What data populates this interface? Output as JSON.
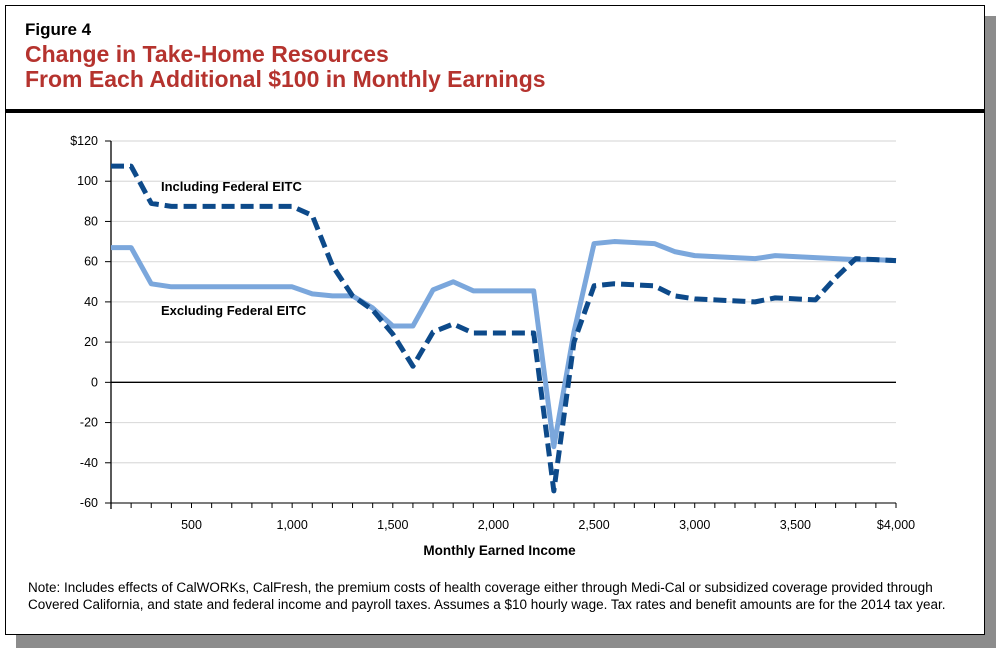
{
  "figure_label": "Figure 4",
  "title_line1": "Change in Take-Home Resources",
  "title_line2": "From Each Additional $100 in Monthly Earnings",
  "note": "Note: Includes effects of CalWORKs, CalFresh, the premium costs of health coverage either through Medi-Cal or subsidized coverage provided through Covered California, and state and federal income and payroll taxes. Assumes a $10 hourly wage. Tax rates and benefit amounts are for the 2014 tax year.",
  "chart_data": {
    "type": "line",
    "title": "Change in Take-Home Resources From Each Additional $100 in Monthly Earnings",
    "xlabel": "Monthly Earned Income",
    "ylabel": "",
    "xlim": [
      100,
      4000
    ],
    "ylim": [
      -60,
      120
    ],
    "yticks": [
      120,
      100,
      80,
      60,
      40,
      20,
      0,
      -20,
      -40,
      -60
    ],
    "ytick_labels": [
      "$120",
      "100",
      "80",
      "60",
      "40",
      "20",
      "0",
      "-20",
      "-40",
      "-60"
    ],
    "xticks": [
      500,
      1000,
      1500,
      2000,
      2500,
      3000,
      3500,
      4000
    ],
    "xtick_labels": [
      "500",
      "1,000",
      "1,500",
      "2,000",
      "2,500",
      "3,000",
      "3,500",
      "$4,000"
    ],
    "grid": true,
    "x": [
      100,
      200,
      300,
      400,
      500,
      600,
      700,
      800,
      900,
      1000,
      1100,
      1200,
      1300,
      1400,
      1500,
      1600,
      1700,
      1800,
      1900,
      2000,
      2100,
      2200,
      2300,
      2400,
      2500,
      2600,
      2700,
      2800,
      2900,
      3000,
      3100,
      3200,
      3300,
      3400,
      3500,
      3600,
      3700,
      3800,
      3900,
      4000
    ],
    "series": [
      {
        "name": "Including Federal EITC",
        "color": "#0d4a8a",
        "style": "dashed",
        "values": [
          107.5,
          107.5,
          89,
          87.5,
          87.5,
          87.5,
          87.5,
          87.5,
          87.5,
          87.5,
          83,
          58,
          43,
          36,
          24,
          8,
          25,
          29,
          24.5,
          24.5,
          24.5,
          24.5,
          -54,
          20,
          48,
          49,
          48.5,
          48,
          43,
          41.5,
          41,
          40.5,
          40,
          42,
          41.5,
          41,
          52,
          61.5,
          61,
          60.5
        ]
      },
      {
        "name": "Excluding Federal EITC",
        "color": "#7ba7dc",
        "style": "solid",
        "values": [
          67,
          67,
          49,
          47.5,
          47.5,
          47.5,
          47.5,
          47.5,
          47.5,
          47.5,
          44,
          43,
          43,
          37,
          28,
          28,
          46,
          50,
          45.5,
          45.5,
          45.5,
          45.5,
          -32,
          25,
          69,
          70,
          69.5,
          69,
          65,
          63,
          62.5,
          62,
          61.5,
          63,
          62.5,
          62,
          61.5,
          61,
          61,
          60.5
        ]
      }
    ]
  }
}
